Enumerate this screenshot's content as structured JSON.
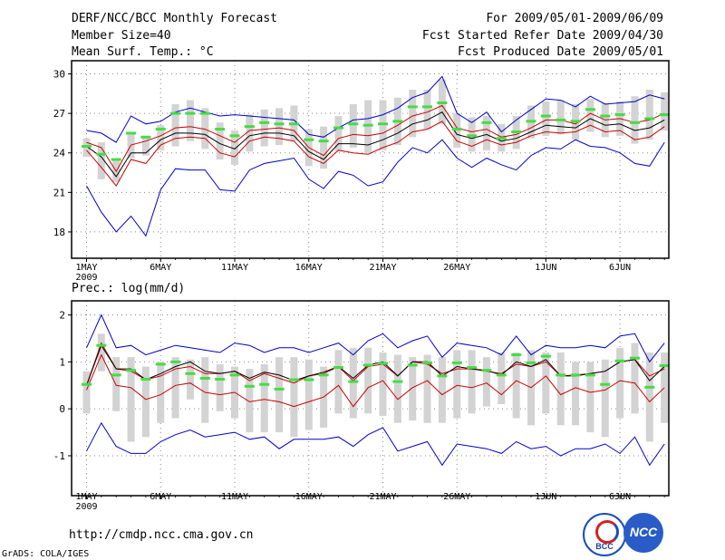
{
  "header": {
    "left": [
      "DERF/NCC/BCC Monthly Forecast",
      "Member Size=40",
      "Mean Surf. Temp.: °C"
    ],
    "right": [
      "For 2009/05/01-2009/06/09",
      "Fcst Started Refer Date 2009/04/30",
      "Fcst Produced Date 2009/05/01"
    ]
  },
  "footer": {
    "url": "http://cmdp.ncc.cma.gov.cn",
    "credit": "GrADS: COLA/IGES"
  },
  "logos": {
    "bcc": "BCC",
    "ncc": "NCC"
  },
  "colors": {
    "max_min": "#0000cc",
    "spread": "#cc0000",
    "ensemble": "#000000",
    "best": "#44dd44",
    "bar": "#d3d3d3",
    "grid": "#888888"
  },
  "chart_data": [
    {
      "type": "line",
      "title": "Mean Surf. Temp.: °C",
      "xlabel": "",
      "ylabel": "°C",
      "ylim": [
        16,
        31
      ],
      "yticks": [
        18,
        21,
        24,
        27,
        30
      ],
      "days": 40,
      "xticks": [
        {
          "day": 0,
          "label": "1MAY",
          "sub": "2009"
        },
        {
          "day": 5,
          "label": "6MAY"
        },
        {
          "day": 10,
          "label": "11MAY"
        },
        {
          "day": 15,
          "label": "16MAY"
        },
        {
          "day": 20,
          "label": "21MAY"
        },
        {
          "day": 25,
          "label": "26MAY"
        },
        {
          "day": 31,
          "label": "1JUN"
        },
        {
          "day": 36,
          "label": "6JUN"
        }
      ],
      "series": [
        {
          "name": "max",
          "color": "#0000cc",
          "values": [
            25.7,
            25.5,
            24.8,
            26.8,
            26.2,
            26.4,
            27.1,
            27.4,
            27.1,
            26.8,
            26.9,
            26.8,
            26.7,
            26.6,
            26.5,
            25.4,
            25.2,
            25.9,
            26.5,
            26.6,
            26.9,
            27.4,
            28.2,
            28.6,
            29.8,
            27.0,
            26.3,
            27.1,
            25.6,
            26.5,
            27.3,
            28.1,
            28.0,
            27.5,
            28.3,
            27.7,
            27.8,
            27.9,
            28.4,
            28.1
          ]
        },
        {
          "name": "min",
          "color": "#0000cc",
          "values": [
            21.5,
            19.5,
            18.0,
            19.2,
            17.7,
            21.2,
            22.8,
            22.7,
            22.7,
            21.2,
            21.1,
            22.7,
            23.2,
            23.4,
            23.6,
            22.0,
            21.3,
            22.6,
            22.3,
            21.5,
            21.8,
            23.3,
            24.4,
            24.0,
            25.0,
            23.6,
            22.9,
            23.6,
            23.1,
            22.7,
            23.8,
            24.4,
            24.3,
            25.0,
            24.5,
            24.4,
            24.0,
            23.2,
            23.0,
            24.8
          ]
        },
        {
          "name": "spread_upper",
          "color": "#cc0000",
          "values": [
            24.8,
            24.4,
            22.6,
            24.6,
            24.9,
            25.3,
            25.9,
            26.0,
            25.8,
            25.3,
            24.8,
            25.7,
            25.8,
            25.9,
            25.7,
            24.4,
            23.8,
            25.1,
            25.4,
            25.3,
            25.5,
            26.1,
            26.8,
            27.1,
            27.6,
            25.9,
            25.6,
            25.8,
            25.2,
            25.4,
            25.9,
            26.5,
            26.5,
            26.2,
            27.0,
            26.5,
            26.6,
            26.3,
            26.5,
            27.0
          ]
        },
        {
          "name": "spread_lower",
          "color": "#cc0000",
          "values": [
            24.2,
            22.9,
            21.5,
            23.5,
            23.2,
            24.6,
            25.1,
            25.2,
            25.1,
            24.0,
            23.7,
            24.9,
            25.2,
            25.1,
            24.9,
            23.7,
            23.2,
            24.2,
            24.0,
            23.9,
            24.4,
            24.8,
            25.6,
            25.8,
            26.4,
            24.9,
            24.5,
            25.0,
            24.6,
            24.8,
            25.3,
            25.6,
            25.5,
            25.6,
            26.1,
            25.6,
            25.7,
            25.0,
            25.2,
            26.0
          ]
        },
        {
          "name": "ensemble_mean",
          "color": "#000000",
          "values": [
            24.5,
            23.7,
            22.2,
            24.0,
            24.0,
            25.0,
            25.5,
            25.5,
            25.4,
            24.7,
            24.3,
            25.3,
            25.5,
            25.5,
            25.3,
            24.1,
            23.5,
            24.7,
            24.7,
            24.6,
            25.0,
            25.5,
            26.2,
            26.5,
            27.1,
            25.4,
            25.1,
            25.4,
            24.9,
            25.1,
            25.6,
            26.1,
            26.0,
            25.9,
            26.6,
            26.1,
            26.2,
            25.7,
            25.9,
            26.5
          ]
        }
      ],
      "bars": [
        [
          25.1,
          23.7
        ],
        [
          24.8,
          22.0
        ],
        [
          23.6,
          21.8
        ],
        [
          25.5,
          23.6
        ],
        [
          25.3,
          23.8
        ],
        [
          26.1,
          24.2
        ],
        [
          27.7,
          24.5
        ],
        [
          28.0,
          24.9
        ],
        [
          27.4,
          24.3
        ],
        [
          26.3,
          23.5
        ],
        [
          25.7,
          23.1
        ],
        [
          26.9,
          24.1
        ],
        [
          27.3,
          24.5
        ],
        [
          27.4,
          24.6
        ],
        [
          27.6,
          24.9
        ],
        [
          25.8,
          23.0
        ],
        [
          26.0,
          22.8
        ],
        [
          26.8,
          24.1
        ],
        [
          27.7,
          24.4
        ],
        [
          28.0,
          24.0
        ],
        [
          28.0,
          24.2
        ],
        [
          28.2,
          24.6
        ],
        [
          28.8,
          25.2
        ],
        [
          28.8,
          25.8
        ],
        [
          29.6,
          26.2
        ],
        [
          27.0,
          24.4
        ],
        [
          26.7,
          24.1
        ],
        [
          26.8,
          24.2
        ],
        [
          26.2,
          24.1
        ],
        [
          26.8,
          24.3
        ],
        [
          27.6,
          25.1
        ],
        [
          27.9,
          25.3
        ],
        [
          28.0,
          25.4
        ],
        [
          27.7,
          25.0
        ],
        [
          28.1,
          25.6
        ],
        [
          27.8,
          25.2
        ],
        [
          27.9,
          25.3
        ],
        [
          28.3,
          24.7
        ],
        [
          28.8,
          25.0
        ],
        [
          28.6,
          25.7
        ]
      ],
      "best": [
        24.5,
        23.9,
        23.5,
        25.5,
        25.2,
        25.8,
        27.0,
        27.0,
        27.0,
        25.8,
        25.3,
        26.0,
        26.3,
        26.2,
        26.2,
        25.0,
        24.9,
        25.9,
        26.2,
        26.1,
        26.2,
        26.4,
        27.5,
        27.5,
        27.8,
        25.8,
        25.3,
        26.3,
        25.1,
        25.6,
        26.4,
        26.8,
        26.5,
        26.4,
        27.3,
        26.8,
        26.9,
        26.3,
        26.6,
        26.9
      ]
    },
    {
      "type": "line",
      "title": "Prec.: log(mm/d)",
      "xlabel": "",
      "ylabel": "log(mm/d)",
      "ylim": [
        -1.85,
        2.3
      ],
      "yticks": [
        -1,
        0,
        1,
        2
      ],
      "days": 40,
      "xticks": [
        {
          "day": 0,
          "label": "1MAY",
          "sub": "2009"
        },
        {
          "day": 5,
          "label": "6MAY"
        },
        {
          "day": 10,
          "label": "11MAY"
        },
        {
          "day": 15,
          "label": "16MAY"
        },
        {
          "day": 20,
          "label": "21MAY"
        },
        {
          "day": 25,
          "label": "26MAY"
        },
        {
          "day": 31,
          "label": "1JUN"
        },
        {
          "day": 36,
          "label": "6JUN"
        }
      ],
      "series": [
        {
          "name": "max",
          "color": "#0000cc",
          "values": [
            1.3,
            2.0,
            1.3,
            1.35,
            1.15,
            1.25,
            1.35,
            1.3,
            1.25,
            1.2,
            1.4,
            1.35,
            1.2,
            1.3,
            1.3,
            1.2,
            1.3,
            1.4,
            1.15,
            1.45,
            1.6,
            1.3,
            1.45,
            1.55,
            1.1,
            1.4,
            1.35,
            1.3,
            1.15,
            1.55,
            1.15,
            1.35,
            1.3,
            1.3,
            1.35,
            1.3,
            1.55,
            1.6,
            1.0,
            1.4
          ]
        },
        {
          "name": "min",
          "color": "#0000cc",
          "values": [
            -0.9,
            -0.3,
            -0.8,
            -0.95,
            -0.95,
            -0.7,
            -0.55,
            -0.45,
            -0.6,
            -0.55,
            -0.5,
            -0.65,
            -0.6,
            -0.85,
            -0.65,
            -0.65,
            -0.65,
            -0.6,
            -0.8,
            -0.55,
            -0.4,
            -0.9,
            -0.8,
            -0.7,
            -1.2,
            -0.75,
            -0.8,
            -0.85,
            -0.95,
            -0.7,
            -0.85,
            -0.8,
            -1.0,
            -0.85,
            -0.85,
            -0.75,
            -0.95,
            -0.6,
            -1.2,
            -0.75
          ]
        },
        {
          "name": "spread_upper",
          "color": "#cc0000",
          "values": [
            0.5,
            1.4,
            0.85,
            0.8,
            0.62,
            0.7,
            0.85,
            0.9,
            0.75,
            0.75,
            0.8,
            0.6,
            0.75,
            0.65,
            0.55,
            0.7,
            0.75,
            0.9,
            0.6,
            0.9,
            0.95,
            0.7,
            1.0,
            0.95,
            0.75,
            0.85,
            0.85,
            0.8,
            0.75,
            0.95,
            0.9,
            1.0,
            0.7,
            0.72,
            0.75,
            0.8,
            1.0,
            1.05,
            0.7,
            0.85
          ]
        },
        {
          "name": "spread_lower",
          "color": "#cc0000",
          "values": [
            0.4,
            1.15,
            0.5,
            0.45,
            0.2,
            0.3,
            0.5,
            0.55,
            0.35,
            0.3,
            0.35,
            0.15,
            0.2,
            0.15,
            0.05,
            0.15,
            0.25,
            0.5,
            0.05,
            0.45,
            0.6,
            0.2,
            0.45,
            0.6,
            0.3,
            0.5,
            0.45,
            0.55,
            0.3,
            0.6,
            0.45,
            0.7,
            0.3,
            0.45,
            0.35,
            0.4,
            0.6,
            0.55,
            0.15,
            0.45
          ]
        },
        {
          "name": "ensemble_mean",
          "color": "#000000",
          "values": [
            0.5,
            1.35,
            0.85,
            0.85,
            0.62,
            0.75,
            0.9,
            1.0,
            0.8,
            0.75,
            0.8,
            0.65,
            0.78,
            0.72,
            0.6,
            0.7,
            0.78,
            0.9,
            0.65,
            0.93,
            1.0,
            0.7,
            1.0,
            1.0,
            0.7,
            0.9,
            0.85,
            0.82,
            0.72,
            1.0,
            0.9,
            1.05,
            0.7,
            0.7,
            0.75,
            0.8,
            1.0,
            1.05,
            0.6,
            0.9
          ]
        }
      ],
      "bars": [
        [
          0.8,
          -0.1
        ],
        [
          1.6,
          0.8
        ],
        [
          1.1,
          -0.05
        ],
        [
          1.1,
          -0.7
        ],
        [
          0.9,
          -0.6
        ],
        [
          1.0,
          -0.3
        ],
        [
          1.1,
          -0.2
        ],
        [
          1.05,
          0.2
        ],
        [
          1.1,
          -0.3
        ],
        [
          0.95,
          -0.05
        ],
        [
          0.9,
          -0.2
        ],
        [
          0.85,
          -0.5
        ],
        [
          0.95,
          -0.5
        ],
        [
          1.1,
          -0.5
        ],
        [
          1.1,
          -0.6
        ],
        [
          1.05,
          -0.45
        ],
        [
          0.9,
          -0.4
        ],
        [
          1.25,
          -0.1
        ],
        [
          1.3,
          -0.2
        ],
        [
          1.3,
          -0.1
        ],
        [
          1.2,
          -0.15
        ],
        [
          1.15,
          -0.3
        ],
        [
          1.1,
          -0.25
        ],
        [
          1.15,
          -0.3
        ],
        [
          1.1,
          -0.3
        ],
        [
          1.25,
          -0.2
        ],
        [
          1.25,
          -0.1
        ],
        [
          1.1,
          0.05
        ],
        [
          1.2,
          0.1
        ],
        [
          1.2,
          -0.2
        ],
        [
          1.25,
          -0.35
        ],
        [
          1.2,
          -0.1
        ],
        [
          1.2,
          -0.35
        ],
        [
          1.0,
          -0.35
        ],
        [
          1.0,
          -0.5
        ],
        [
          1.05,
          -0.6
        ],
        [
          1.3,
          -0.2
        ],
        [
          1.4,
          -0.1
        ],
        [
          1.2,
          -0.7
        ],
        [
          1.2,
          -0.3
        ]
      ],
      "best": [
        0.52,
        1.35,
        0.72,
        0.82,
        0.63,
        0.95,
        1.0,
        0.75,
        0.65,
        0.63,
        0.72,
        0.48,
        0.52,
        0.42,
        0.62,
        0.62,
        0.72,
        0.88,
        0.58,
        0.93,
        0.97,
        0.58,
        0.93,
        0.98,
        0.7,
        0.98,
        0.88,
        0.82,
        0.72,
        1.15,
        0.98,
        1.12,
        0.72,
        0.72,
        0.72,
        0.52,
        1.02,
        1.08,
        0.46,
        0.92
      ]
    }
  ]
}
